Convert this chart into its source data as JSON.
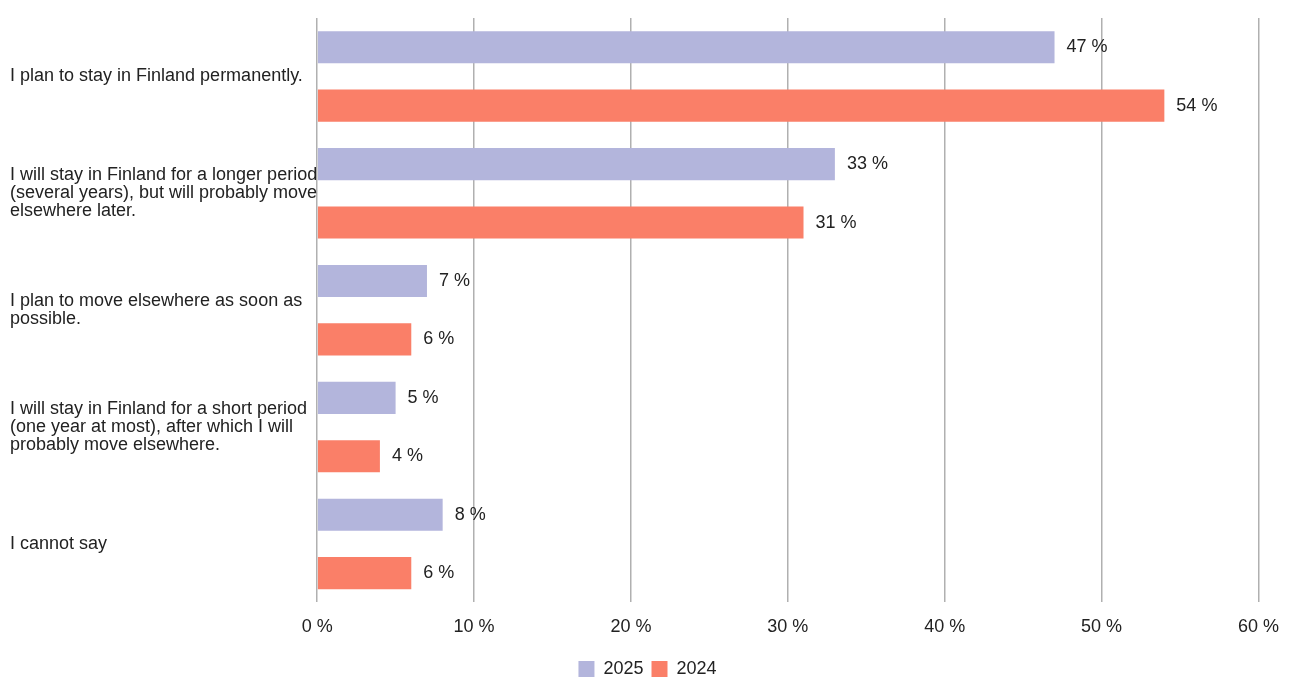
{
  "chart_data": {
    "type": "bar",
    "orientation": "horizontal",
    "categories": [
      "I plan to stay in Finland permanently.",
      "I will stay in Finland for a longer period (several years), but will probably move elsewhere later.",
      "I plan to move elsewhere as soon as possible.",
      "I will stay in Finland for a short period (one year at most), after which I will probably move elsewhere.",
      "I cannot say"
    ],
    "series": [
      {
        "name": "2025",
        "color": "#b3b5dc",
        "values": [
          47,
          33,
          7,
          5,
          8
        ],
        "value_labels": [
          "47 %",
          "33 %",
          "7 %",
          "5 %",
          "8 %"
        ]
      },
      {
        "name": "2024",
        "color": "#fa7f68",
        "values": [
          54,
          31,
          6,
          4,
          6
        ],
        "value_labels": [
          "54 %",
          "31 %",
          "6 %",
          "4 %",
          "6 %"
        ]
      }
    ],
    "xlim": [
      0,
      60
    ],
    "xticks": [
      {
        "value": 0,
        "label": "0 %"
      },
      {
        "value": 10,
        "label": "10 %"
      },
      {
        "value": 20,
        "label": "20 %"
      },
      {
        "value": 30,
        "label": "30 %"
      },
      {
        "value": 40,
        "label": "40 %"
      },
      {
        "value": 50,
        "label": "50 %"
      },
      {
        "value": 60,
        "label": "60 %"
      }
    ],
    "grid": "x",
    "legend": "bottom"
  }
}
